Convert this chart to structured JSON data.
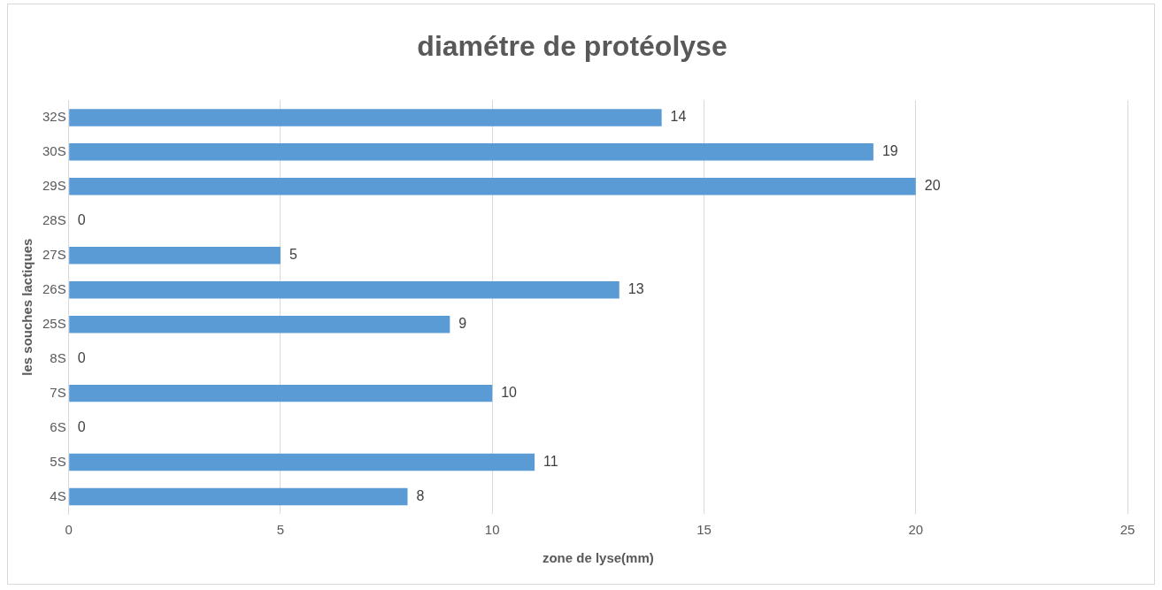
{
  "chart_data": {
    "type": "bar",
    "orientation": "horizontal",
    "title": "diamétre de protéolyse",
    "xlabel": "zone de lyse(mm)",
    "ylabel": "les souches lactiques",
    "categories": [
      "32S",
      "30S",
      "29S",
      "28S",
      "27S",
      "26S",
      "25S",
      "8S",
      "7S",
      "6S",
      "5S",
      "4S"
    ],
    "values": [
      14,
      19,
      20,
      0,
      5,
      13,
      9,
      0,
      10,
      0,
      11,
      8
    ],
    "color": "#5b9bd5",
    "xlim": [
      0,
      25
    ],
    "xticks": [
      0,
      5,
      10,
      15,
      20,
      25
    ],
    "grid": "x",
    "data_labels": true,
    "legend": false
  }
}
